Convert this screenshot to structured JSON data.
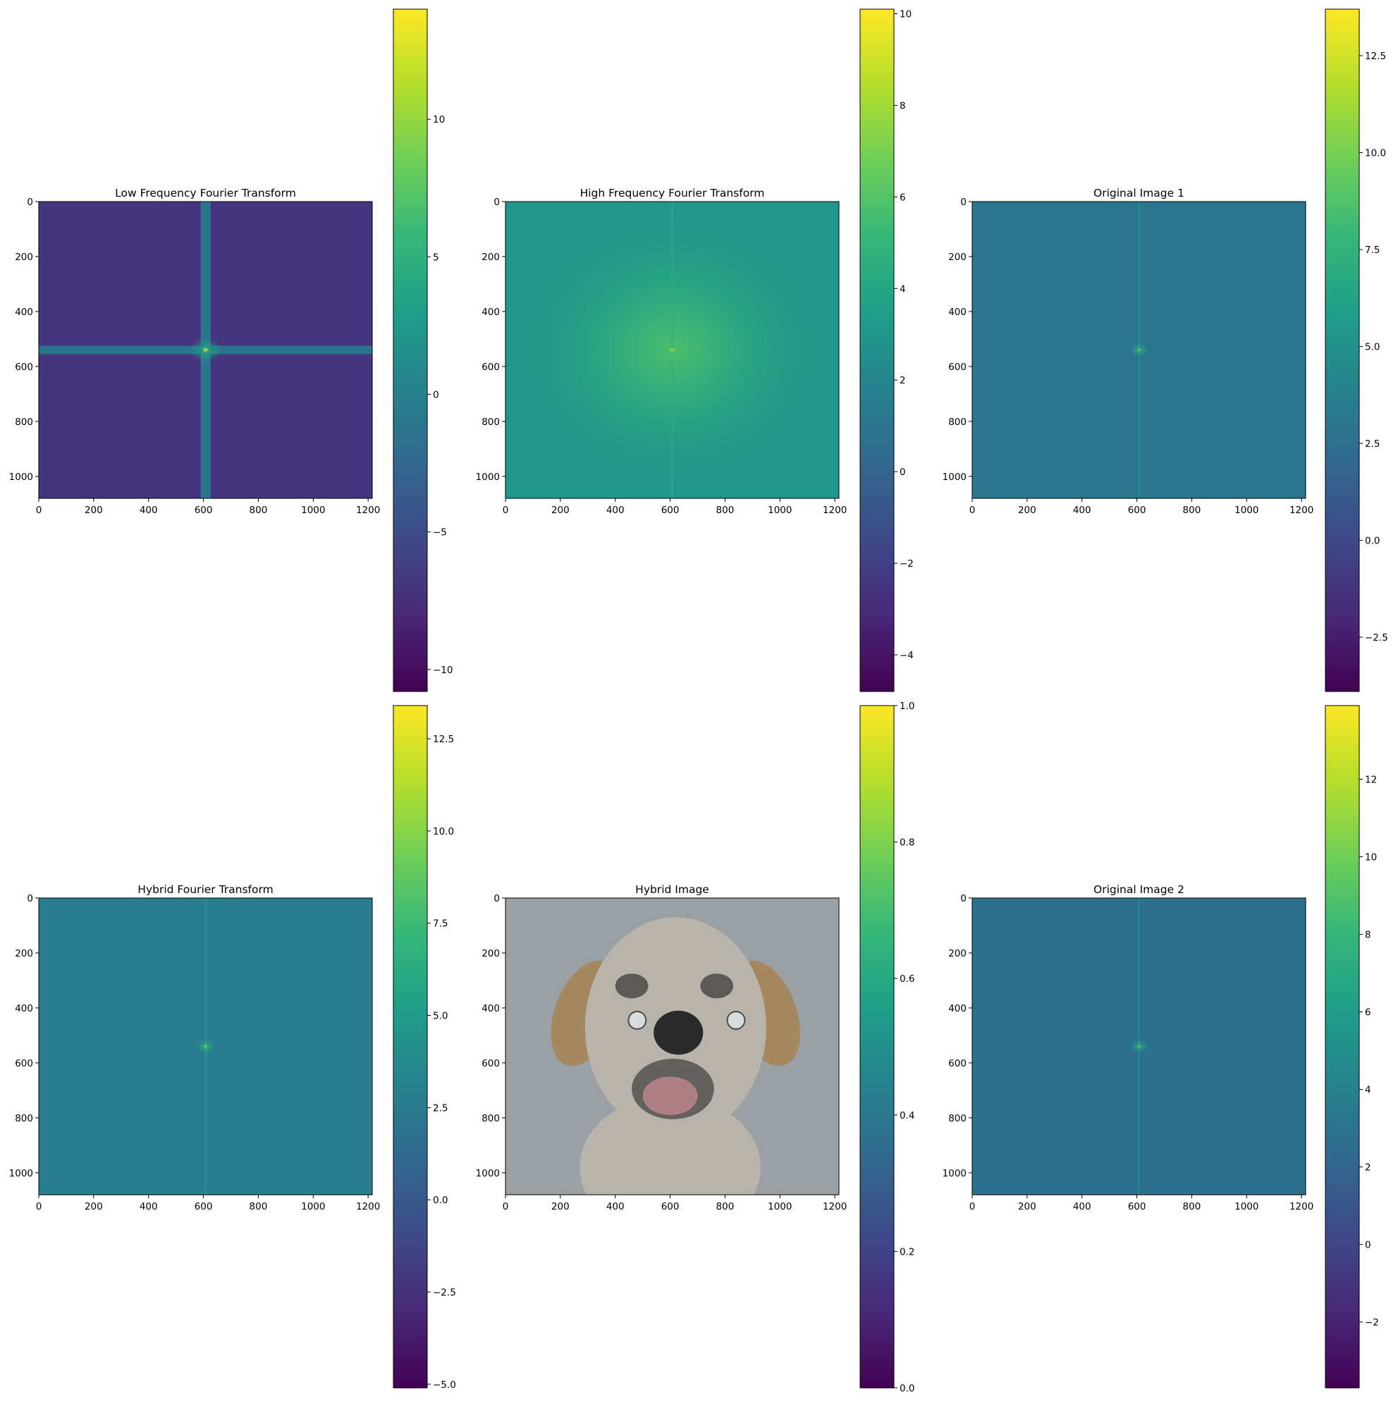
{
  "figure": {
    "layout": "2 rows x 3 columns of image panels, each with a colorbar"
  },
  "colormap": {
    "name": "viridis",
    "stops": [
      "#440154",
      "#482878",
      "#3e4989",
      "#31688e",
      "#26828e",
      "#1f9e89",
      "#35b779",
      "#6ece58",
      "#b5de2b",
      "#fde725"
    ]
  },
  "chart_data": [
    {
      "type": "heatmap",
      "title": "Low Frequency Fourier Transform",
      "xlim": [
        0,
        1215
      ],
      "ylim": [
        1080,
        0
      ],
      "xticks": [
        0,
        200,
        400,
        600,
        800,
        1000,
        1200
      ],
      "yticks": [
        0,
        200,
        400,
        600,
        800,
        1000
      ],
      "content": "log-magnitude spectrum, bright cross through center",
      "center": [
        608,
        540
      ],
      "background_value": -7,
      "axis_line_value": 0,
      "center_value": 13.5,
      "colorbar": {
        "range": [
          -10.8,
          14
        ],
        "ticks": [
          "−10",
          "−5",
          "0",
          "5",
          "10"
        ],
        "tick_values": [
          -10,
          -5,
          0,
          5,
          10
        ]
      }
    },
    {
      "type": "heatmap",
      "title": "High Frequency Fourier Transform",
      "xlim": [
        0,
        1215
      ],
      "ylim": [
        1080,
        0
      ],
      "xticks": [
        0,
        200,
        400,
        600,
        800,
        1000,
        1200
      ],
      "yticks": [
        0,
        200,
        400,
        600,
        800,
        1000
      ],
      "content": "log-magnitude spectrum, broad bright region at center",
      "center": [
        608,
        540
      ],
      "background_value": 3,
      "center_value": 8,
      "colorbar": {
        "range": [
          -4.8,
          10.1
        ],
        "ticks": [
          "−4",
          "−2",
          "0",
          "2",
          "4",
          "6",
          "8",
          "10"
        ],
        "tick_values": [
          -4,
          -2,
          0,
          2,
          4,
          6,
          8,
          10
        ]
      }
    },
    {
      "type": "heatmap",
      "title": "Original Image 1",
      "xlim": [
        0,
        1215
      ],
      "ylim": [
        1080,
        0
      ],
      "xticks": [
        0,
        200,
        400,
        600,
        800,
        1000,
        1200
      ],
      "yticks": [
        0,
        200,
        400,
        600,
        800,
        1000
      ],
      "content": "log-magnitude spectrum, small bright spot at center",
      "center": [
        608,
        540
      ],
      "background_value": 3,
      "center_value": 11,
      "colorbar": {
        "range": [
          -3.9,
          13.7
        ],
        "ticks": [
          "−2.5",
          "0.0",
          "2.5",
          "5.0",
          "7.5",
          "10.0",
          "12.5"
        ],
        "tick_values": [
          -2.5,
          0,
          2.5,
          5,
          7.5,
          10,
          12.5
        ]
      }
    },
    {
      "type": "heatmap",
      "title": "Hybrid Fourier Transform",
      "xlim": [
        0,
        1215
      ],
      "ylim": [
        1080,
        0
      ],
      "xticks": [
        0,
        200,
        400,
        600,
        800,
        1000,
        1200
      ],
      "yticks": [
        0,
        200,
        400,
        600,
        800,
        1000
      ],
      "content": "log-magnitude spectrum, small bright spot at center",
      "center": [
        608,
        540
      ],
      "background_value": 2.8,
      "center_value": 11,
      "colorbar": {
        "range": [
          -5.1,
          13.4
        ],
        "ticks": [
          "−5.0",
          "−2.5",
          "0.0",
          "2.5",
          "5.0",
          "7.5",
          "10.0",
          "12.5"
        ],
        "tick_values": [
          -5,
          -2.5,
          0,
          2.5,
          5,
          7.5,
          10,
          12.5
        ]
      }
    },
    {
      "type": "image",
      "title": "Hybrid Image",
      "xlim": [
        0,
        1215
      ],
      "ylim": [
        1080,
        0
      ],
      "xticks": [
        0,
        200,
        400,
        600,
        800,
        1000,
        1200
      ],
      "yticks": [
        0,
        200,
        400,
        600,
        800,
        1000
      ],
      "content": "photo of a puppy face on grey background",
      "colors": {
        "background": "#9aa0a4",
        "fur": "#b8b4ac",
        "fur_warm": "#a58760",
        "eye": "#4a4a48",
        "nose": "#2a2a2a",
        "mouth": "#b07f86"
      },
      "colorbar": {
        "range": [
          0,
          1
        ],
        "ticks": [
          "0.0",
          "0.2",
          "0.4",
          "0.6",
          "0.8",
          "1.0"
        ],
        "tick_values": [
          0,
          0.2,
          0.4,
          0.6,
          0.8,
          1
        ]
      }
    },
    {
      "type": "heatmap",
      "title": "Original Image 2",
      "xlim": [
        0,
        1215
      ],
      "ylim": [
        1080,
        0
      ],
      "xticks": [
        0,
        200,
        400,
        600,
        800,
        1000,
        1200
      ],
      "yticks": [
        0,
        200,
        400,
        600,
        800,
        1000
      ],
      "content": "log-magnitude spectrum, small bright spot at center",
      "center": [
        608,
        540
      ],
      "background_value": 2.8,
      "center_value": 11,
      "colorbar": {
        "range": [
          -3.7,
          13.9
        ],
        "ticks": [
          "−2",
          "0",
          "2",
          "4",
          "6",
          "8",
          "10",
          "12"
        ],
        "tick_values": [
          -2,
          0,
          2,
          4,
          6,
          8,
          10,
          12
        ]
      }
    }
  ]
}
